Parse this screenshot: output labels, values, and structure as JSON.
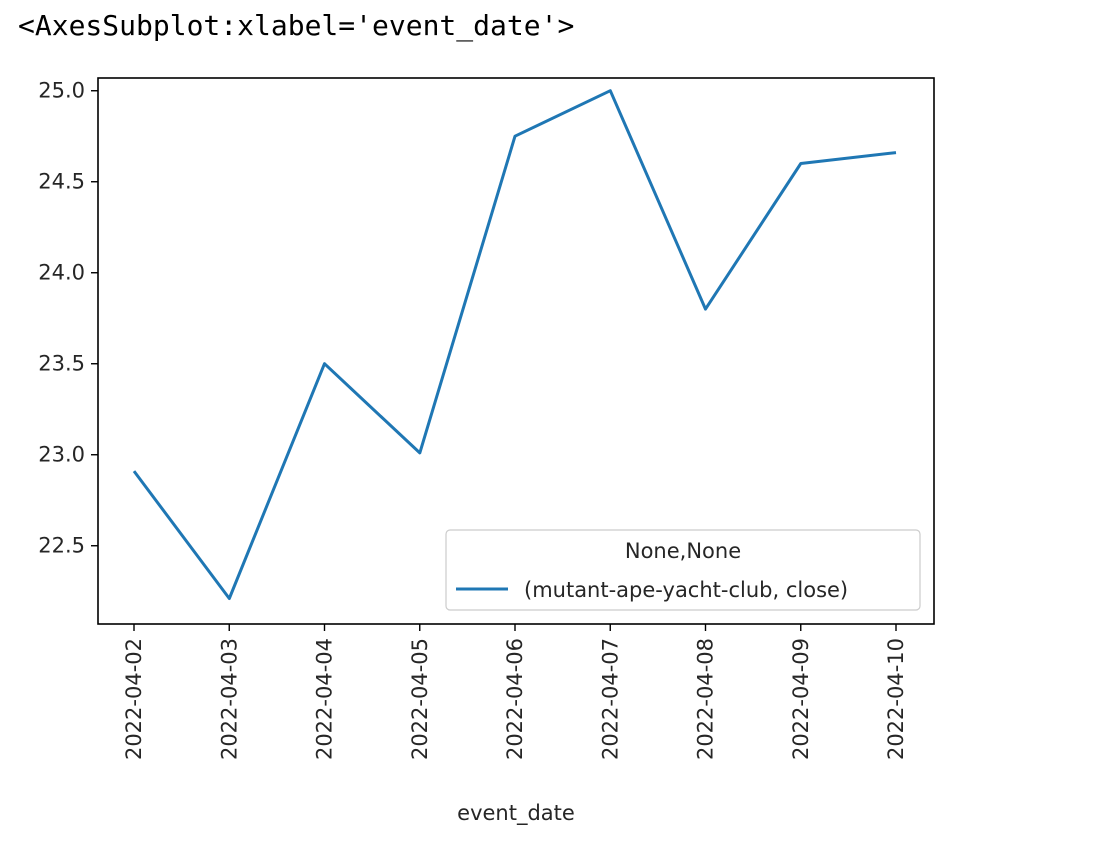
{
  "output_text": "<AxesSubplot:xlabel='event_date'>",
  "chart_data": {
    "type": "line",
    "x": [
      "2022-04-02",
      "2022-04-03",
      "2022-04-04",
      "2022-04-05",
      "2022-04-06",
      "2022-04-07",
      "2022-04-08",
      "2022-04-09",
      "2022-04-10"
    ],
    "series": [
      {
        "name": "(mutant-ape-yacht-club, close)",
        "values": [
          22.91,
          22.21,
          23.5,
          23.01,
          24.75,
          25.0,
          23.8,
          24.6,
          24.66
        ],
        "color": "#1f77b4"
      }
    ],
    "xlabel": "event_date",
    "ylabel": "",
    "ylim": [
      22.07,
      25.07
    ],
    "yticks": [
      22.5,
      23.0,
      23.5,
      24.0,
      24.5,
      25.0
    ],
    "ytick_labels": [
      "22.5",
      "23.0",
      "23.5",
      "24.0",
      "24.5",
      "25.0"
    ],
    "legend": {
      "title": "None,None",
      "placement": "lower right"
    },
    "grid": false
  }
}
